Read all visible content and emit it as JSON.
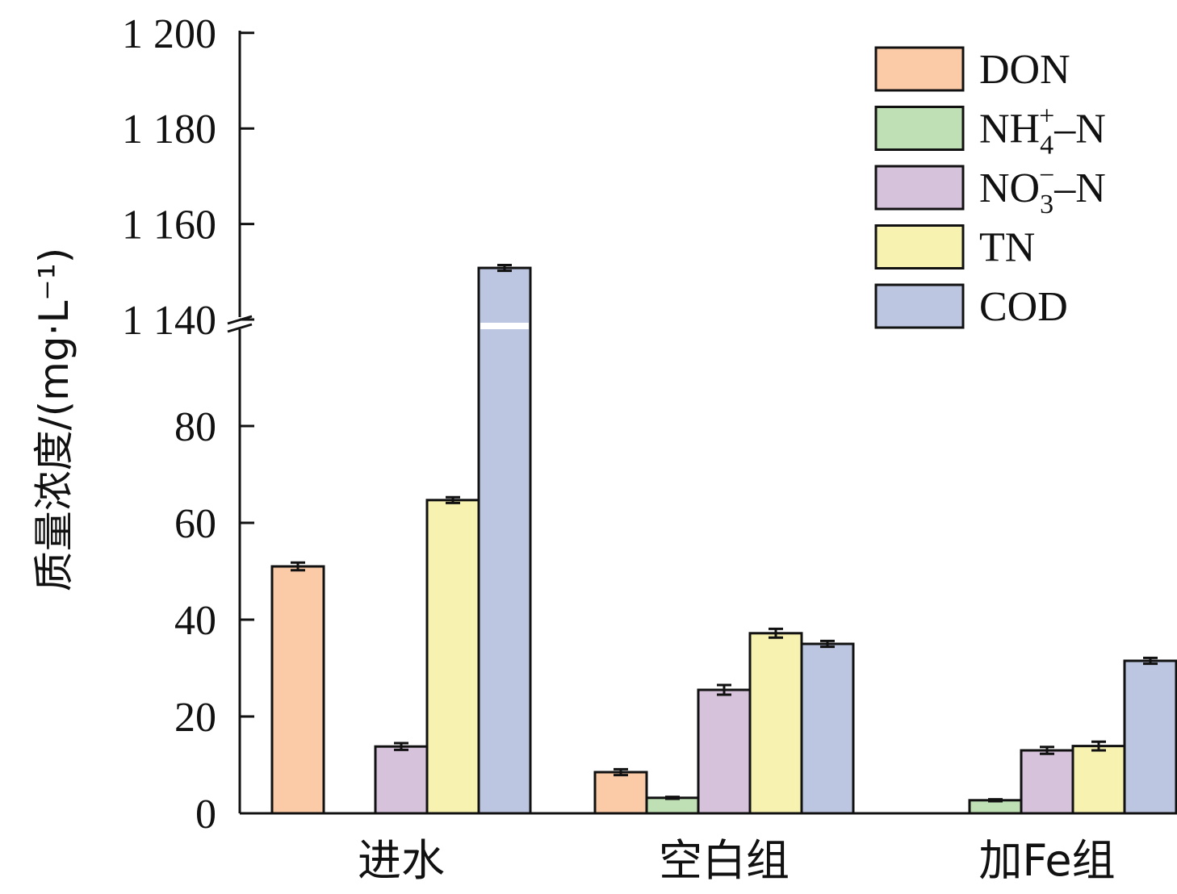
{
  "chart_data": {
    "type": "bar",
    "title": "",
    "xlabel": "",
    "ylabel": "质量浓度/(mg·L⁻¹)",
    "categories": [
      "进水",
      "空白组",
      "加Fe组"
    ],
    "series": [
      {
        "name": "DON",
        "color": "#FBCBA8",
        "values": [
          51.0,
          8.5,
          null
        ],
        "errors": [
          0.8,
          0.6,
          null
        ]
      },
      {
        "name": "NH4+-N",
        "color": "#BFE0B5",
        "values": [
          null,
          3.2,
          2.7
        ],
        "errors": [
          null,
          0.2,
          0.2
        ]
      },
      {
        "name": "NO3−-N",
        "color": "#D6C3DB",
        "values": [
          13.8,
          25.5,
          13.0
        ],
        "errors": [
          0.7,
          1.0,
          0.7
        ]
      },
      {
        "name": "TN",
        "color": "#F7F2B0",
        "values": [
          64.7,
          37.2,
          13.9
        ],
        "errors": [
          0.6,
          0.9,
          0.9
        ]
      },
      {
        "name": "COD",
        "color": "#BCC6E0",
        "values": [
          1150.8,
          35.0,
          31.5
        ],
        "errors": [
          0.6,
          0.6,
          0.6
        ]
      }
    ],
    "legend_labels": {
      "DON": {
        "main": "DON",
        "sub": "",
        "sup": "",
        "tail": ""
      },
      "NH4+-N": {
        "main": "NH",
        "sub": "4",
        "sup": "+",
        "tail": "–N"
      },
      "NO3−-N": {
        "main": "NO",
        "sub": "3",
        "sup": "−",
        "tail": "–N"
      },
      "TN": {
        "main": "TN",
        "sub": "",
        "sup": "",
        "tail": ""
      },
      "COD": {
        "main": "COD",
        "sub": "",
        "sup": "",
        "tail": ""
      }
    },
    "y_axis": {
      "broken": true,
      "lower_segment": {
        "range": [
          0,
          90
        ],
        "ticks": [
          0,
          20,
          40,
          60,
          80
        ],
        "tick_labels": [
          "0",
          "20",
          "40",
          "60",
          "80"
        ]
      },
      "upper_segment": {
        "range": [
          1140,
          1200
        ],
        "ticks": [
          1140,
          1160,
          1180,
          1200
        ],
        "tick_labels": [
          "1 140",
          "1 160",
          "1 180",
          "1 200"
        ]
      }
    },
    "legend_position": "top-right",
    "grid": false
  }
}
